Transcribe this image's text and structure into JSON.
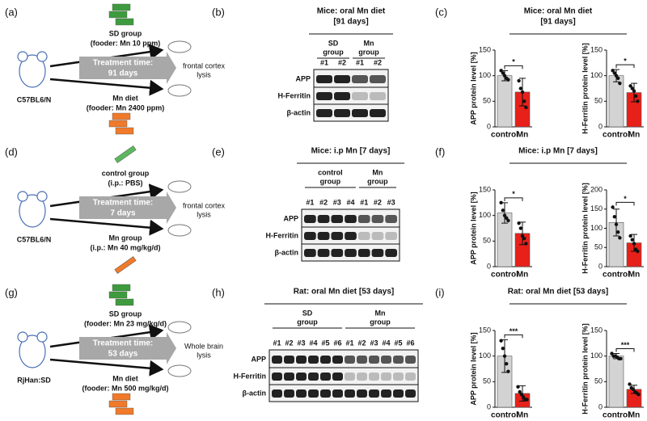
{
  "rows": [
    {
      "labels": [
        "(a)",
        "(b)",
        "(c)"
      ],
      "scheme": {
        "animal": "C57BL6/N",
        "top_group": "SD group",
        "top_detail": "(fooder: Mn 10 ppm)",
        "treatment": "Treatment time:",
        "duration": "91 days",
        "bottom_group": "Mn diet",
        "bottom_detail": "(fooder: Mn 2400 ppm)",
        "endpoint": [
          "frontal cortex",
          "lysis"
        ]
      },
      "blot": {
        "title": [
          "Mice: oral Mn diet",
          "[91 days]"
        ],
        "groups": [
          {
            "name": [
              "SD",
              "group"
            ],
            "lanes": [
              "#1",
              "#2"
            ]
          },
          {
            "name": [
              "Mn",
              "group"
            ],
            "lanes": [
              "#1",
              "#2"
            ]
          }
        ],
        "proteins": [
          "APP",
          "H-Ferritin",
          "β-actin"
        ]
      },
      "result_title": [
        "Mice: oral Mn diet",
        "[91 days]"
      ]
    },
    {
      "labels": [
        "(d)",
        "(e)",
        "(f)"
      ],
      "scheme": {
        "animal": "C57BL6/N",
        "top_group": "control group",
        "top_detail": "(i.p.: PBS)",
        "treatment": "Treatment time:",
        "duration": "7 days",
        "bottom_group": "Mn group",
        "bottom_detail": "(i.p.: Mn 40 mg/kg/d)",
        "endpoint": [
          "frontal cortex",
          "lysis"
        ]
      },
      "blot": {
        "title": [
          "Mice: i.p Mn [7 days]"
        ],
        "groups": [
          {
            "name": [
              "control",
              "group"
            ],
            "lanes": [
              "#1",
              "#2",
              "#3",
              "#4"
            ]
          },
          {
            "name": [
              "Mn",
              "group"
            ],
            "lanes": [
              "#1",
              "#2",
              "#3"
            ]
          }
        ],
        "proteins": [
          "APP",
          "H-Ferritin",
          "β-actin"
        ]
      },
      "result_title": [
        "Mice: i.p Mn [7 days]"
      ]
    },
    {
      "labels": [
        "(g)",
        "(h)",
        "(i)"
      ],
      "scheme": {
        "animal": "RjHan:SD",
        "top_group": "SD group",
        "top_detail": "(fooder: Mn 23 mg/kg/d)",
        "treatment": "Treatment time:",
        "duration": "53 days",
        "bottom_group": "Mn diet",
        "bottom_detail": "(fooder: Mn 500 mg/kg/d)",
        "endpoint": [
          "Whole brain",
          "lysis"
        ]
      },
      "blot": {
        "title": [
          "Rat: oral Mn diet [53 days]"
        ],
        "groups": [
          {
            "name": [
              "SD",
              "group"
            ],
            "lanes": [
              "#1",
              "#2",
              "#3",
              "#4",
              "#5",
              "#6"
            ]
          },
          {
            "name": [
              "Mn",
              "group"
            ],
            "lanes": [
              "#1",
              "#2",
              "#3",
              "#4",
              "#5",
              "#6"
            ]
          }
        ],
        "proteins": [
          "APP",
          "H-Ferritin",
          "β-actin"
        ]
      },
      "result_title": [
        "Rat: oral Mn diet [53 days]"
      ]
    }
  ],
  "chart_data": [
    {
      "type": "bar",
      "ylabel": "APP protein level [%]",
      "categories": [
        "control",
        "Mn"
      ],
      "values": [
        100,
        68
      ],
      "errors": [
        10,
        27
      ],
      "points": [
        [
          110,
          105,
          100,
          95,
          92
        ],
        [
          90,
          75,
          68,
          50,
          38
        ]
      ],
      "colors": [
        "#d3d3d3",
        "#e8201a"
      ],
      "significance": "*",
      "ylim": [
        0,
        150
      ],
      "yticks": [
        0,
        50,
        100,
        150
      ]
    },
    {
      "type": "bar",
      "ylabel": "H-Ferritin protein level [%]",
      "categories": [
        "control",
        "Mn"
      ],
      "values": [
        100,
        67
      ],
      "errors": [
        12,
        18
      ],
      "points": [
        [
          110,
          105,
          100,
          95,
          85
        ],
        [
          80,
          75,
          70,
          60,
          50
        ]
      ],
      "colors": [
        "#d3d3d3",
        "#e8201a"
      ],
      "significance": "*",
      "ylim": [
        0,
        150
      ],
      "yticks": [
        0,
        50,
        100,
        150
      ]
    },
    {
      "type": "bar",
      "ylabel": "APP protein level [%]",
      "categories": [
        "control",
        "Mn"
      ],
      "values": [
        105,
        65
      ],
      "errors": [
        20,
        22
      ],
      "points": [
        [
          125,
          110,
          100,
          95,
          90
        ],
        [
          85,
          75,
          60,
          55,
          45
        ]
      ],
      "colors": [
        "#d3d3d3",
        "#e8201a"
      ],
      "significance": "*",
      "ylim": [
        0,
        150
      ],
      "yticks": [
        0,
        50,
        100,
        150
      ]
    },
    {
      "type": "bar",
      "ylabel": "H-Ferritin protein level [%]",
      "categories": [
        "control",
        "Mn"
      ],
      "values": [
        115,
        62
      ],
      "errors": [
        35,
        22
      ],
      "points": [
        [
          155,
          130,
          110,
          90,
          75
        ],
        [
          80,
          70,
          60,
          45,
          40
        ]
      ],
      "colors": [
        "#d3d3d3",
        "#e8201a"
      ],
      "significance": "*",
      "ylim": [
        0,
        200
      ],
      "yticks": [
        0,
        50,
        100,
        150,
        200
      ]
    },
    {
      "type": "bar",
      "ylabel": "APP protein level [%]",
      "categories": [
        "control",
        "Mn"
      ],
      "values": [
        100,
        27
      ],
      "errors": [
        32,
        15
      ],
      "points": [
        [
          130,
          115,
          100,
          85,
          70
        ],
        [
          40,
          30,
          25,
          20,
          15,
          15
        ]
      ],
      "colors": [
        "#d3d3d3",
        "#e8201a"
      ],
      "significance": "***",
      "ylim": [
        0,
        150
      ],
      "yticks": [
        0,
        50,
        100,
        150
      ]
    },
    {
      "type": "bar",
      "ylabel": "H-Ferritin protein level [%]",
      "categories": [
        "control",
        "Mn"
      ],
      "values": [
        100,
        35
      ],
      "errors": [
        5,
        8
      ],
      "points": [
        [
          105,
          100,
          100,
          98,
          95,
          95
        ],
        [
          45,
          38,
          35,
          30,
          28,
          25
        ]
      ],
      "colors": [
        "#d3d3d3",
        "#e8201a"
      ],
      "significance": "***",
      "ylim": [
        0,
        150
      ],
      "yticks": [
        0,
        50,
        100,
        150
      ]
    }
  ]
}
